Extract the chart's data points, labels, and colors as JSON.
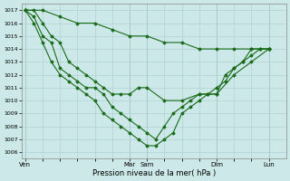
{
  "background_color": "#cce8e8",
  "grid_color": "#aacccc",
  "line_color": "#1a6b1a",
  "marker_color": "#1a6b1a",
  "xlabel": "Pression niveau de la mer( hPa )",
  "ylim": [
    1005.5,
    1017.5
  ],
  "yticks": [
    1006,
    1007,
    1008,
    1009,
    1010,
    1011,
    1012,
    1013,
    1014,
    1015,
    1016,
    1017
  ],
  "xtick_labels": [
    "Ven",
    "Mar",
    "Sam",
    "Dim",
    "Lun"
  ],
  "xtick_positions": [
    0,
    6,
    7,
    11,
    14
  ],
  "xlim": [
    -0.2,
    15.0
  ],
  "s1_x": [
    0,
    1,
    2,
    3,
    4,
    5,
    6,
    7,
    8,
    9,
    10,
    11,
    12,
    13,
    14
  ],
  "s1_y": [
    1017,
    1017,
    1016.5,
    1016,
    1016,
    1015.5,
    1015,
    1015,
    1014.5,
    1014.5,
    1014,
    1014,
    1014,
    1014,
    1014
  ],
  "s2_x": [
    0,
    0.5,
    1,
    1.5,
    2,
    2.5,
    3,
    3.5,
    4,
    4.5,
    5,
    5.5,
    6,
    6.5,
    7,
    8,
    9,
    10,
    11,
    12,
    13,
    14
  ],
  "s2_y": [
    1017,
    1017,
    1016,
    1015,
    1014.5,
    1013,
    1012.5,
    1012,
    1011.5,
    1011,
    1010.5,
    1010.5,
    1010.5,
    1011,
    1011,
    1010,
    1010,
    1010.5,
    1010.5,
    1012,
    1013,
    1014
  ],
  "s3_x": [
    0,
    0.5,
    1,
    1.5,
    2,
    2.5,
    3,
    3.5,
    4,
    4.5,
    5,
    5.5,
    6,
    6.5,
    7,
    7.5,
    8,
    8.5,
    9,
    9.5,
    10,
    10.5,
    11,
    11.5,
    12,
    12.5,
    13,
    13.5,
    14
  ],
  "s3_y": [
    1017,
    1016.5,
    1015,
    1014.5,
    1012.5,
    1012,
    1011.5,
    1011,
    1011,
    1010.5,
    1009.5,
    1009,
    1008.5,
    1008,
    1007.5,
    1007,
    1008,
    1009,
    1009.5,
    1010,
    1010.5,
    1010.5,
    1010.5,
    1012,
    1012.5,
    1013,
    1014,
    1014,
    1014
  ],
  "s4_x": [
    0,
    0.5,
    1,
    1.5,
    2,
    2.5,
    3,
    3.5,
    4,
    4.5,
    5,
    5.5,
    6,
    6.5,
    7,
    7.5,
    8,
    8.5,
    9,
    9.5,
    10,
    10.5,
    11,
    11.5,
    12,
    12.5,
    13,
    13.5,
    14
  ],
  "s4_y": [
    1017,
    1016,
    1014.5,
    1013,
    1012,
    1011.5,
    1011,
    1010.5,
    1010,
    1009,
    1008.5,
    1008,
    1007.5,
    1007,
    1006.5,
    1006.5,
    1007,
    1007.5,
    1009,
    1009.5,
    1010,
    1010.5,
    1011,
    1011.5,
    1012.5,
    1013,
    1013.5,
    1014,
    1014
  ]
}
